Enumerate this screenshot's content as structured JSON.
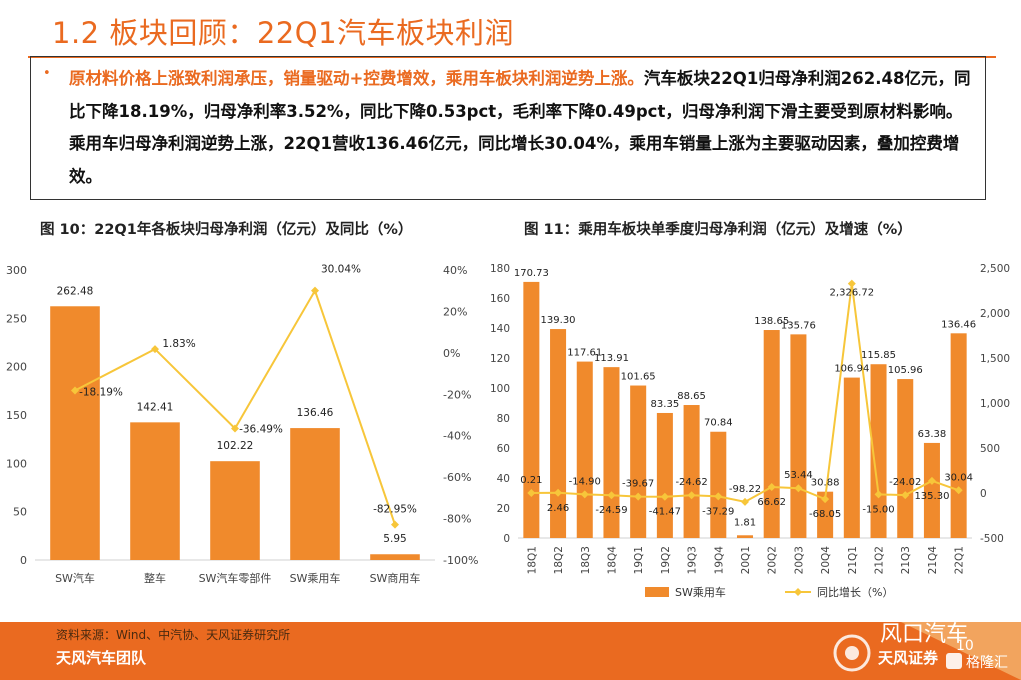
{
  "header": {
    "title": "1.2 板块回顾：22Q1汽车板块利润"
  },
  "summary": {
    "bullet": "•",
    "highlight": "原材料价格上涨致利润承压，销量驱动+控费增效，乘用车板块利润逆势上涨。",
    "body": "汽车板块22Q1归母净利润262.48亿元，同比下降18.19%，归母净利率3.52%，同比下降0.53pct，毛利率下降0.49pct，归母净利润下滑主要受到原材料影响。乘用车归母净利润逆势上涨，22Q1营收136.46亿元，同比增长30.04%，乘用车销量上涨为主要驱动因素，叠加控费增效。"
  },
  "colors": {
    "accent": "#ea6a20",
    "bar": "#f08a2c",
    "line": "#f7c63a",
    "axis": "#d0d0d0"
  },
  "chart_data": [
    {
      "type": "bar+line",
      "title": "图 10：22Q1年各板块归母净利润（亿元）及同比（%）",
      "categories": [
        "SW汽车",
        "整车",
        "SW汽车零部件",
        "SW乘用车",
        "SW商用车"
      ],
      "bar_labels": [
        "262.48",
        "142.41",
        "102.22",
        "136.46",
        "5.95"
      ],
      "line_labels": [
        "-18.19%",
        "1.83%",
        "-36.49%",
        "30.04%",
        "-82.95%"
      ],
      "series": [
        {
          "values": [
            262.48,
            142.41,
            102.22,
            136.46,
            5.95
          ],
          "axis": "left"
        },
        {
          "values": [
            -18.19,
            1.83,
            -36.49,
            30.04,
            -82.95
          ],
          "axis": "right"
        }
      ],
      "ylim_left": [
        0,
        300
      ],
      "yticks_left": [
        "0",
        "50",
        "100",
        "150",
        "200",
        "250",
        "300"
      ],
      "ylim_right": [
        -100,
        40
      ],
      "yticks_right": [
        "-100%",
        "-80%",
        "-60%",
        "-40%",
        "-20%",
        "0%",
        "20%",
        "40%"
      ],
      "legend": []
    },
    {
      "type": "bar+line",
      "title": "图 11：乘用车板块单季度归母净利润（亿元）及增速（%）",
      "categories": [
        "18Q1",
        "18Q2",
        "18Q3",
        "18Q4",
        "19Q1",
        "19Q2",
        "19Q3",
        "19Q4",
        "20Q1",
        "20Q2",
        "20Q3",
        "20Q4",
        "21Q1",
        "21Q2",
        "21Q3",
        "21Q4",
        "22Q1"
      ],
      "bar_labels": [
        "170.73",
        "139.30",
        "117.61",
        "113.91",
        "101.65",
        "83.35",
        "88.65",
        "70.84",
        "1.81",
        "138.65",
        "135.76",
        "30.88",
        "106.94",
        "115.85",
        "105.96",
        "63.38",
        "136.46"
      ],
      "line_labels": [
        "0.21",
        "2.46",
        "-14.90",
        "-24.59",
        "-39.67",
        "-41.47",
        "-24.62",
        "-37.29",
        "-98.22",
        "66.62",
        "53.44",
        "-68.05",
        "2,326.72",
        "-15.00",
        "-24.02",
        "135.30",
        "30.04"
      ],
      "series": [
        {
          "name": "SW乘用车",
          "values": [
            170.73,
            139.3,
            117.61,
            113.91,
            101.65,
            83.35,
            88.65,
            70.84,
            1.81,
            138.65,
            135.76,
            30.88,
            106.94,
            115.85,
            105.96,
            63.38,
            136.46
          ],
          "axis": "left"
        },
        {
          "name": "同比增长（%）",
          "values": [
            0.21,
            2.46,
            -14.9,
            -24.59,
            -39.67,
            -41.47,
            -24.62,
            -37.29,
            -98.22,
            66.62,
            53.44,
            -68.05,
            2326.72,
            -15.0,
            -24.02,
            135.3,
            30.04
          ],
          "axis": "right"
        }
      ],
      "ylim_left": [
        0,
        180
      ],
      "yticks_left": [
        "0",
        "20",
        "40",
        "60",
        "80",
        "100",
        "120",
        "140",
        "160",
        "180"
      ],
      "ylim_right": [
        -500,
        2500
      ],
      "yticks_right": [
        "-500",
        "0",
        "500",
        "1,000",
        "1,500",
        "2,000",
        "2,500"
      ],
      "legend": [
        "SW乘用车",
        "同比增长（%）"
      ],
      "legend_position": "bottom"
    }
  ],
  "footer": {
    "source": "资料来源：Wind、中汽协、天风证券研究所",
    "team": "天风汽车团队",
    "page": "10",
    "watermark_text": "风口汽车",
    "watermark_brand": "天风证券",
    "watermark_sub": "格隆汇"
  }
}
